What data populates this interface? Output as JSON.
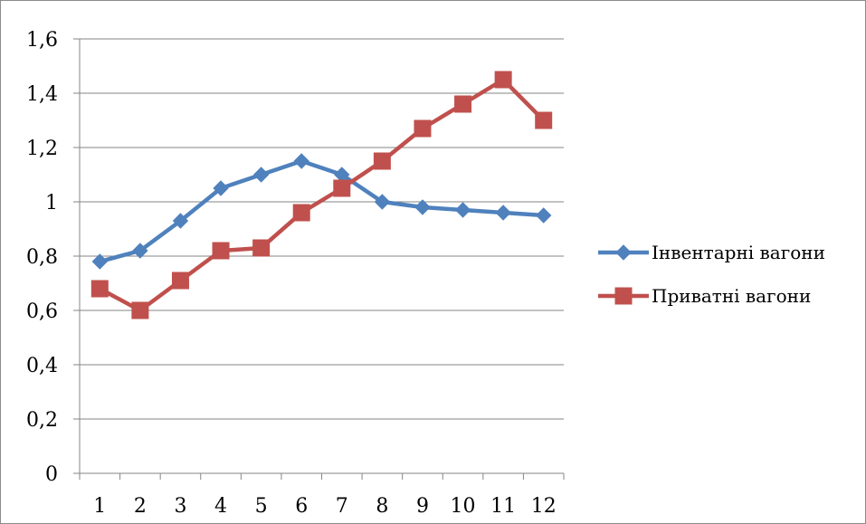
{
  "chart_data": {
    "type": "line",
    "categories": [
      "1",
      "2",
      "3",
      "4",
      "5",
      "6",
      "7",
      "8",
      "9",
      "10",
      "11",
      "12"
    ],
    "ylim": [
      0,
      1.6
    ],
    "yticks": [
      "0",
      "0,2",
      "0,4",
      "0,6",
      "0,8",
      "1",
      "1,2",
      "1,4",
      "1,6"
    ],
    "grid": true,
    "legend_position": "right",
    "series": [
      {
        "name": "Інвентарні вагони",
        "color": "#4f81bd",
        "marker": "diamond",
        "values": [
          0.78,
          0.82,
          0.93,
          1.05,
          1.1,
          1.15,
          1.1,
          1.0,
          0.98,
          0.97,
          0.96,
          0.95
        ]
      },
      {
        "name": "Приватні вагони",
        "color": "#c0504d",
        "marker": "square",
        "values": [
          0.68,
          0.6,
          0.71,
          0.82,
          0.83,
          0.96,
          1.05,
          1.15,
          1.27,
          1.36,
          1.45,
          1.3
        ]
      }
    ]
  }
}
